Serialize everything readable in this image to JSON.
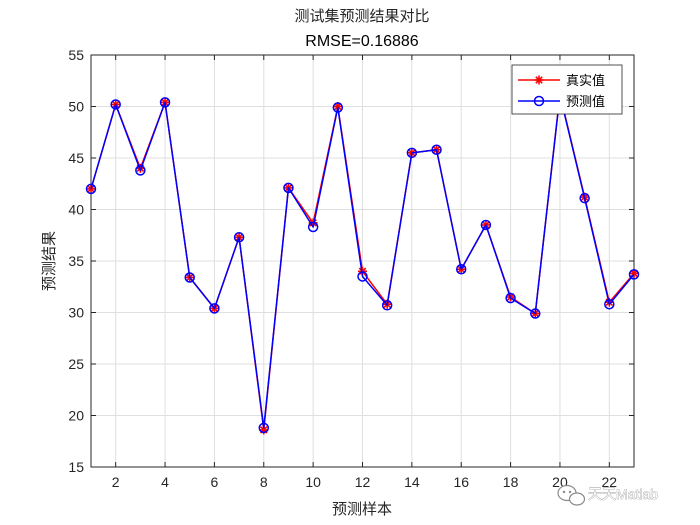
{
  "chart_data": {
    "type": "line",
    "title": "测试集预测结果对比",
    "subtitle": "RMSE=0.16886",
    "xlabel": "预测样本",
    "ylabel": "预测结果",
    "xlim": [
      1,
      23
    ],
    "ylim": [
      15,
      55
    ],
    "xticks": [
      2,
      4,
      6,
      8,
      10,
      12,
      14,
      16,
      18,
      20,
      22
    ],
    "yticks": [
      15,
      20,
      25,
      30,
      35,
      40,
      45,
      50,
      55
    ],
    "grid": true,
    "legend_position": "top-right",
    "x": [
      1,
      2,
      3,
      4,
      5,
      6,
      7,
      8,
      9,
      10,
      11,
      12,
      13,
      14,
      15,
      16,
      17,
      18,
      19,
      20,
      21,
      22,
      23
    ],
    "series": [
      {
        "name": "真实值",
        "color": "#ff0000",
        "marker": "asterisk",
        "values": [
          42.0,
          50.2,
          44.0,
          50.4,
          33.4,
          30.4,
          37.3,
          18.6,
          42.1,
          38.7,
          50.0,
          34.0,
          30.8,
          45.5,
          45.8,
          34.2,
          38.5,
          31.5,
          29.9,
          51.2,
          41.2,
          31.0,
          33.8
        ]
      },
      {
        "name": "预测值",
        "color": "#0000ff",
        "marker": "circle",
        "values": [
          42.0,
          50.2,
          43.8,
          50.4,
          33.4,
          30.4,
          37.3,
          18.8,
          42.1,
          38.3,
          49.9,
          33.5,
          30.7,
          45.5,
          45.8,
          34.2,
          38.5,
          31.4,
          29.9,
          51.1,
          41.1,
          30.8,
          33.7
        ]
      }
    ]
  },
  "watermark": {
    "text": "天天Matlab",
    "icon": "wechat-icon"
  }
}
